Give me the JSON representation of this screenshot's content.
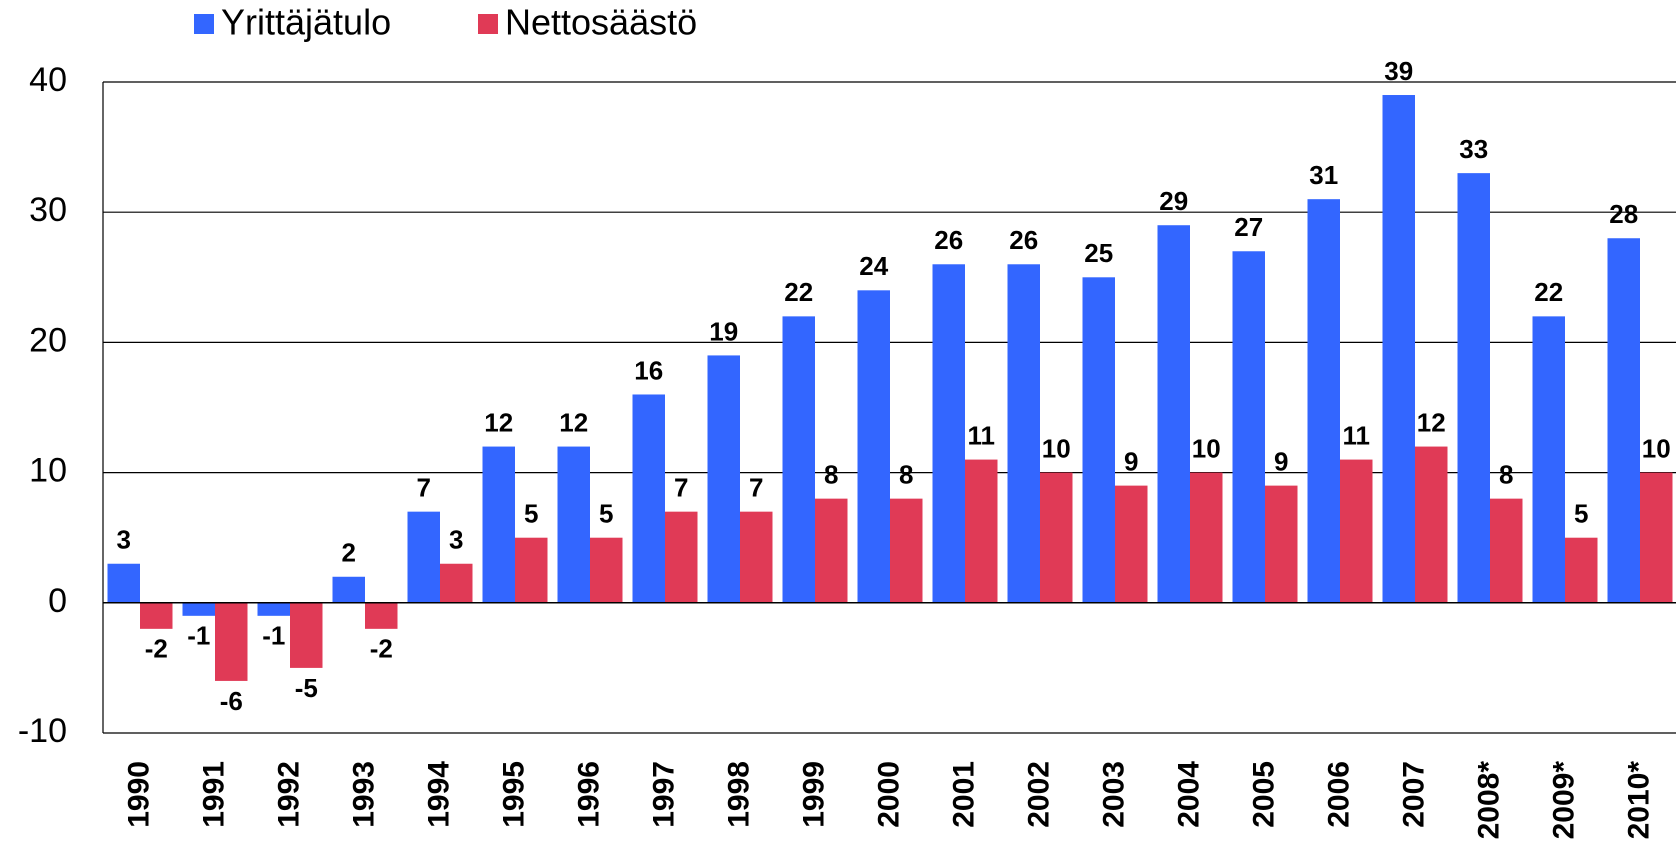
{
  "chart_data": {
    "type": "bar",
    "categories": [
      "1990",
      "1991",
      "1992",
      "1993",
      "1994",
      "1995",
      "1996",
      "1997",
      "1998",
      "1999",
      "2000",
      "2001",
      "2002",
      "2003",
      "2004",
      "2005",
      "2006",
      "2007",
      "2008*",
      "2009*",
      "2010*"
    ],
    "series": [
      {
        "name": "Yrittäjätulo",
        "color": "#3366ff",
        "values": [
          3,
          -1,
          -1,
          2,
          7,
          12,
          12,
          16,
          19,
          22,
          24,
          26,
          26,
          25,
          29,
          27,
          31,
          39,
          33,
          22,
          28
        ]
      },
      {
        "name": "Nettosäästö",
        "color": "#e03a56",
        "values": [
          -2,
          -6,
          -5,
          -2,
          3,
          5,
          5,
          7,
          7,
          8,
          8,
          11,
          10,
          9,
          10,
          9,
          11,
          12,
          8,
          5,
          10
        ]
      }
    ],
    "ylim": [
      -10,
      40
    ],
    "yticks": [
      -10,
      0,
      10,
      20,
      30,
      40
    ],
    "grid": true,
    "legend": "top"
  }
}
